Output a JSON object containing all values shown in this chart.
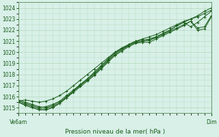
{
  "title": "Pression niveau de la mer( hPa )",
  "xlabel_left": "Ve6am",
  "xlabel_right": "Dim",
  "ylim": [
    1014.5,
    1024.5
  ],
  "yticks": [
    1015,
    1016,
    1017,
    1018,
    1019,
    1020,
    1021,
    1022,
    1023,
    1024
  ],
  "bg_color": "#d8f0e8",
  "grid_color": "#b0d8b8",
  "line_color": "#1a5c1a",
  "lines": [
    [
      1015.6,
      1015.7,
      1015.6,
      1015.5,
      1015.6,
      1015.8,
      1016.1,
      1016.5,
      1017.0,
      1017.5,
      1018.0,
      1018.5,
      1019.0,
      1019.5,
      1020.0,
      1020.4,
      1020.7,
      1021.0,
      1021.2,
      1021.4,
      1021.6,
      1021.9,
      1022.2,
      1022.5,
      1022.8,
      1023.0,
      1023.2,
      1023.5,
      1023.8
    ],
    [
      1015.7,
      1015.5,
      1015.3,
      1015.1,
      1015.0,
      1015.2,
      1015.5,
      1016.0,
      1016.5,
      1017.0,
      1017.5,
      1018.0,
      1018.6,
      1019.2,
      1019.8,
      1020.2,
      1020.6,
      1020.9,
      1021.0,
      1021.1,
      1021.3,
      1021.6,
      1021.9,
      1022.2,
      1022.5,
      1022.8,
      1022.2,
      1022.3,
      1023.3
    ],
    [
      1015.5,
      1015.3,
      1015.1,
      1014.9,
      1014.9,
      1015.1,
      1015.4,
      1015.9,
      1016.4,
      1016.9,
      1017.4,
      1017.9,
      1018.5,
      1019.1,
      1019.7,
      1020.1,
      1020.5,
      1020.8,
      1020.9,
      1020.9,
      1021.2,
      1021.5,
      1021.8,
      1022.1,
      1022.4,
      1022.8,
      1022.0,
      1022.1,
      1023.2
    ],
    [
      1015.6,
      1015.4,
      1015.2,
      1015.0,
      1015.1,
      1015.3,
      1015.6,
      1016.1,
      1016.6,
      1017.1,
      1017.6,
      1018.2,
      1018.8,
      1019.4,
      1020.0,
      1020.3,
      1020.7,
      1021.0,
      1021.1,
      1021.2,
      1021.4,
      1021.7,
      1022.0,
      1022.4,
      1022.7,
      1022.3,
      1022.7,
      1023.2,
      1023.7
    ],
    [
      1015.5,
      1015.2,
      1015.0,
      1014.8,
      1014.8,
      1015.0,
      1015.4,
      1015.9,
      1016.5,
      1017.1,
      1017.6,
      1018.1,
      1018.7,
      1019.3,
      1019.9,
      1020.3,
      1020.6,
      1020.9,
      1021.0,
      1021.1,
      1021.4,
      1021.7,
      1022.0,
      1022.4,
      1022.7,
      1023.0,
      1023.3,
      1023.7,
      1024.0
    ]
  ],
  "n_xminor": 28
}
